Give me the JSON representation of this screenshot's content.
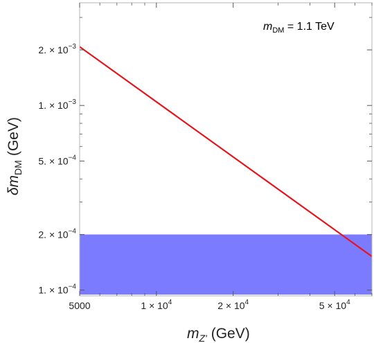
{
  "chart_data": {
    "type": "line",
    "title": "",
    "xscale": "log",
    "yscale": "log",
    "xlim": [
      5000,
      70000
    ],
    "ylim": [
      9.3e-05,
      0.0036
    ],
    "grid": false,
    "xlabel": {
      "main": "m",
      "sub": "Z'",
      "unit": "(GeV)"
    },
    "ylabel": {
      "main": "δm",
      "sub": "DM",
      "unit": "(GeV)"
    },
    "x_ticks": [
      {
        "value": 5000,
        "mant": "5000",
        "exp": ""
      },
      {
        "value": 10000,
        "mant": "1 × 10",
        "exp": "4"
      },
      {
        "value": 20000,
        "mant": "2 × 10",
        "exp": "4"
      },
      {
        "value": 50000,
        "mant": "5 × 10",
        "exp": "4"
      }
    ],
    "y_ticks": [
      {
        "value": 0.0001,
        "mant": "1. × 10",
        "exp": "−4"
      },
      {
        "value": 0.0002,
        "mant": "2. × 10",
        "exp": "−4"
      },
      {
        "value": 0.0005,
        "mant": "5. × 10",
        "exp": "−4"
      },
      {
        "value": 0.001,
        "mant": "1. × 10",
        "exp": "−3"
      },
      {
        "value": 0.002,
        "mant": "2. × 10",
        "exp": "−3"
      }
    ],
    "series": [
      {
        "x": [
          5000,
          70000
        ],
        "y": [
          0.00208,
          0.000152
        ],
        "color": "#e8131b"
      }
    ],
    "band": {
      "y_min": 9.45e-05,
      "y_max": 0.0002,
      "color": "#7b7bff"
    },
    "annotation": {
      "main": "m",
      "sub": "DM",
      "text": " = 1.1 TeV"
    }
  }
}
